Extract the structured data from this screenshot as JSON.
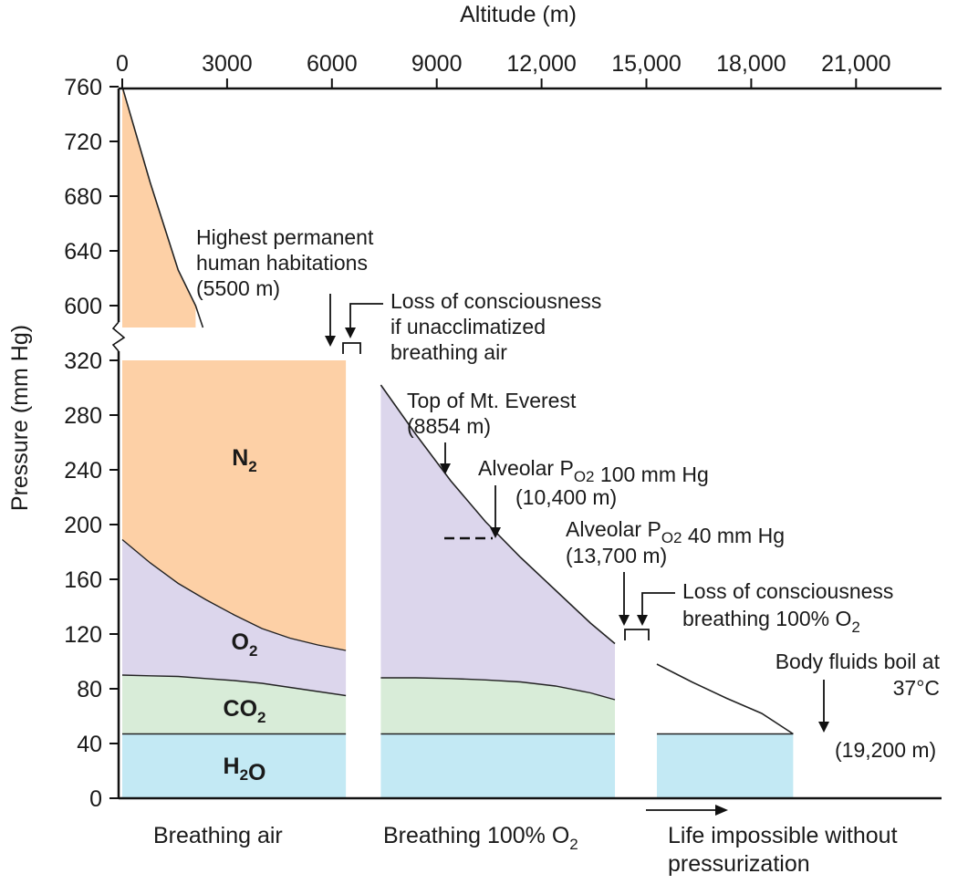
{
  "chart_data": {
    "type": "area",
    "title": "",
    "xlabel": "Altitude (m)",
    "ylabel": "Pressure (mm Hg)",
    "x_axis_position": "top",
    "xlim": [
      0,
      21000
    ],
    "x_ticks": [
      "0",
      "3000",
      "6000",
      "9000",
      "12,000",
      "15,000",
      "18,000",
      "21,000"
    ],
    "y_ticks": [
      "760",
      "720",
      "680",
      "640",
      "600",
      "320",
      "280",
      "240",
      "200",
      "160",
      "120",
      "80",
      "40",
      "0"
    ],
    "y_axis_break": [
      320,
      600
    ],
    "grid": false,
    "colors": {
      "N2": "#fdd0a6",
      "O2": "#dcd6ec",
      "CO2": "#d8ecd8",
      "H2O": "#c3e9f4",
      "line": "#222222"
    },
    "breathing_air": {
      "x": [
        0,
        800,
        1600,
        2400,
        3200,
        4000,
        4800,
        5600,
        6400
      ],
      "total": [
        760,
        690,
        626,
        566,
        512,
        462,
        416,
        375,
        337
      ],
      "o2_top": [
        189,
        172,
        157,
        145,
        134,
        124,
        117,
        112,
        108
      ],
      "co2_top": [
        90,
        89.5,
        89,
        87.5,
        86,
        84,
        81,
        78,
        75
      ],
      "h2o_top": 47
    },
    "breathing_o2": {
      "x": [
        7400,
        8400,
        9400,
        10400,
        11400,
        12400,
        13400,
        14100
      ],
      "total": [
        302,
        266,
        232,
        202,
        176,
        152,
        128,
        113
      ],
      "co2_top": [
        88,
        88,
        87.5,
        86.5,
        85,
        82,
        77,
        72
      ],
      "h2o_top": 47
    },
    "no_life": {
      "x": [
        15300,
        16300,
        17300,
        18300,
        19200
      ],
      "total": [
        98,
        85,
        73,
        62,
        47
      ],
      "h2o_top": 47
    },
    "gas_labels": {
      "n2": {
        "base": "N",
        "sub": "2"
      },
      "o2": {
        "base": "O",
        "sub": "2"
      },
      "co2": {
        "base": "CO",
        "sub": "2"
      },
      "h2o": {
        "base": "H",
        "sub": "2",
        "tail": "O"
      }
    },
    "annotations": {
      "habitation": [
        "Highest permanent",
        "human habitations",
        "(5500 m)"
      ],
      "loc_air": [
        "Loss of consciousness",
        "if unacclimatized",
        "breathing air"
      ],
      "everest": [
        "Top of Mt. Everest",
        "(8854 m)"
      ],
      "alv100": {
        "pre": "Alveolar P",
        "sub": "O",
        "sub2": "2",
        "post": " 100 mm Hg",
        "line2": "(10,400 m)"
      },
      "alv40": {
        "pre": "Alveolar P",
        "sub": "O",
        "sub2": "2",
        "post": " 40 mm Hg",
        "line2": "(13,700 m)"
      },
      "loc_o2": {
        "line1": "Loss of consciousness",
        "line2_pre": "breathing 100% O",
        "line2_sub": "2"
      },
      "boil": [
        "Body fluids boil at",
        "37°C"
      ],
      "boil_alt": "(19,200 m)"
    },
    "regions": {
      "air": "Breathing air",
      "o2": {
        "pre": "Breathing 100% O",
        "sub": "2"
      },
      "impossible": [
        "Life impossible without",
        "pressurization"
      ]
    }
  }
}
